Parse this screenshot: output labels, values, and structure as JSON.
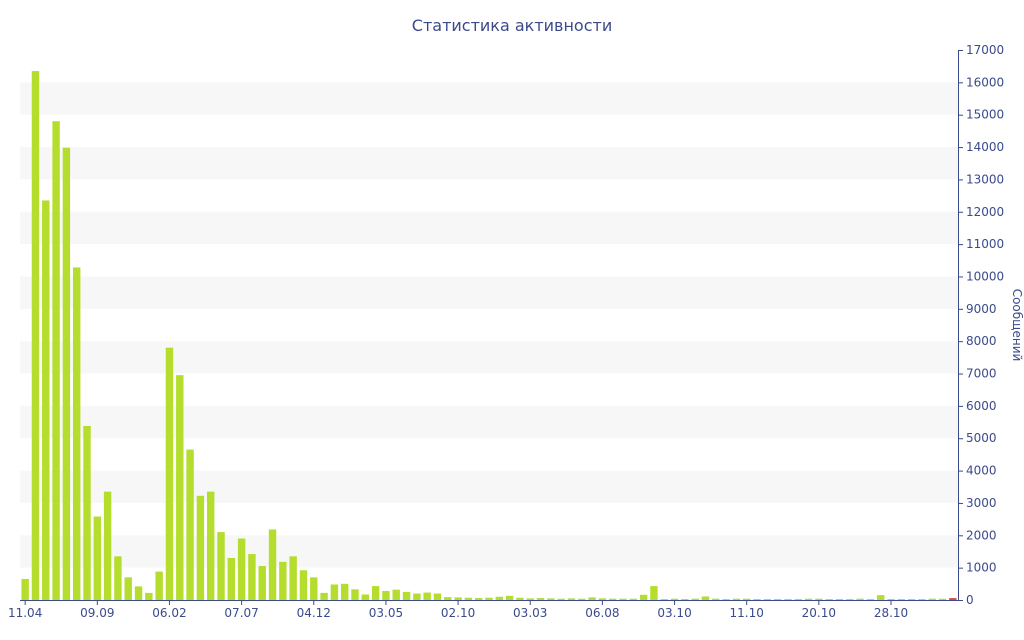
{
  "chart_data": {
    "type": "bar",
    "title": "Статистика активности",
    "ylabel": "Сообщений",
    "ylim": [
      0,
      17000
    ],
    "y_ticks": [
      0,
      1000,
      2000,
      3000,
      4000,
      5000,
      6000,
      7000,
      8000,
      9000,
      10000,
      11000,
      12000,
      13000,
      14000,
      15000,
      16000,
      17000
    ],
    "x_tick_labels": [
      {
        "label": "11.04",
        "index": 0
      },
      {
        "label": "09.09",
        "index": 7
      },
      {
        "label": "06.02",
        "index": 14
      },
      {
        "label": "07.07",
        "index": 21
      },
      {
        "label": "04.12",
        "index": 28
      },
      {
        "label": "03.05",
        "index": 35
      },
      {
        "label": "02.10",
        "index": 42
      },
      {
        "label": "03.03",
        "index": 49
      },
      {
        "label": "06.08",
        "index": 56
      },
      {
        "label": "03.10",
        "index": 63
      },
      {
        "label": "11.10",
        "index": 70
      },
      {
        "label": "20.10",
        "index": 77
      },
      {
        "label": "28.10",
        "index": 84
      }
    ],
    "y_axis_position": "right",
    "grid": "alternating horizontal bands",
    "bar_color": "#b5dd2e",
    "highlight_color": "#e04b3a",
    "band_color": "#f7f7f7",
    "text_color": "#3b4a8c",
    "values": [
      650,
      16350,
      12350,
      14800,
      13980,
      10280,
      5380,
      2580,
      3350,
      1350,
      700,
      420,
      220,
      880,
      7800,
      6950,
      4650,
      3220,
      3350,
      2100,
      1300,
      1900,
      1420,
      1050,
      2180,
      1180,
      1350,
      920,
      700,
      220,
      480,
      500,
      330,
      170,
      430,
      280,
      320,
      250,
      200,
      230,
      200,
      90,
      80,
      70,
      60,
      70,
      100,
      130,
      70,
      50,
      60,
      50,
      40,
      50,
      40,
      80,
      50,
      40,
      40,
      40,
      160,
      430,
      30,
      40,
      30,
      40,
      110,
      40,
      30,
      40,
      40,
      30,
      30,
      30,
      30,
      30,
      40,
      40,
      30,
      30,
      30,
      40,
      30,
      150,
      30,
      30,
      30,
      30,
      40,
      40,
      60
    ],
    "highlight_last": true
  }
}
